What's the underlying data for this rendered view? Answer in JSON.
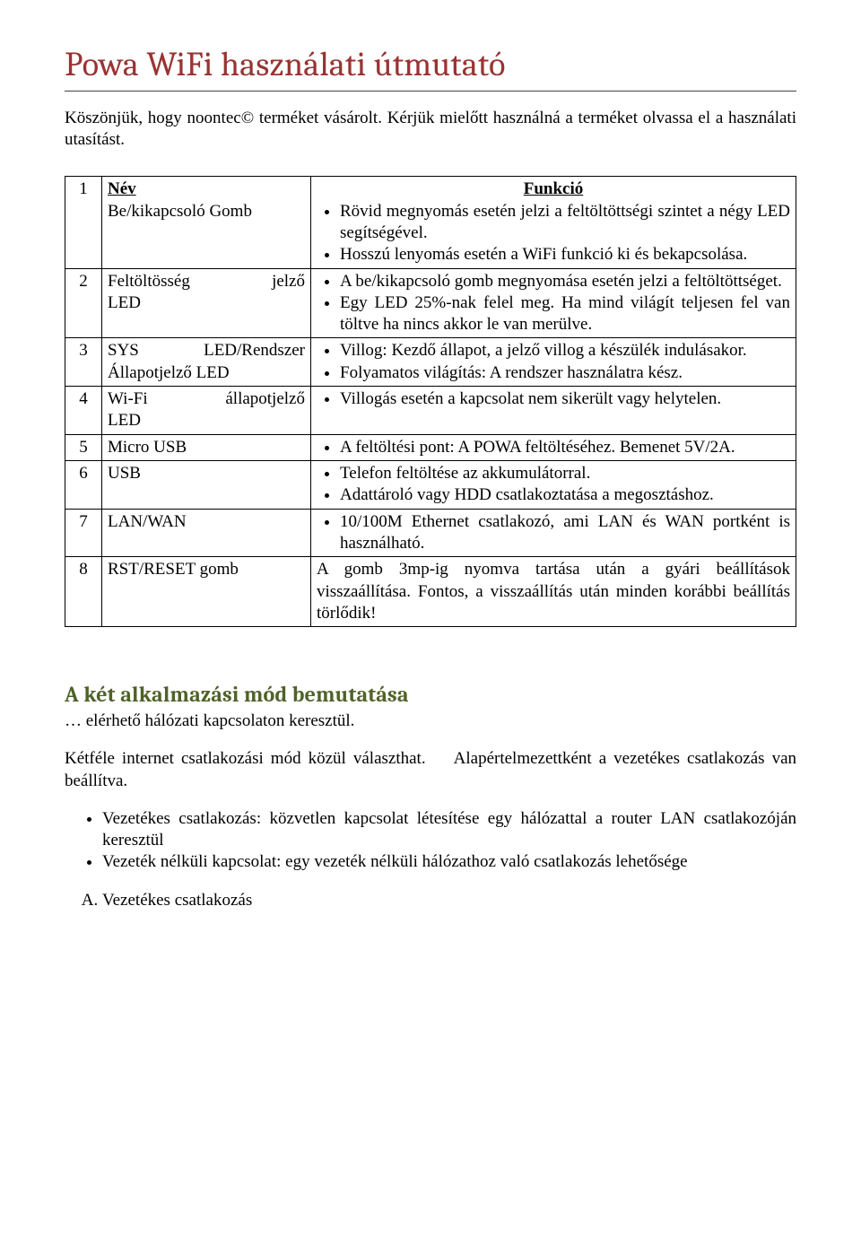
{
  "title_color": "#993333",
  "section_color": "#4f6228",
  "title": "Powa WiFi használati útmutató",
  "intro": "Köszönjük, hogy noontec© terméket vásárolt. Kérjük mielőtt használná a terméket olvassa el a használati utasítást.",
  "table": {
    "header_name": "Név",
    "header_func": "Funkció",
    "rows": [
      {
        "n": "1",
        "name": "Be/kikapcsoló Gomb",
        "bullets": [
          "Rövid megnyomás esetén jelzi a feltöltöttségi szintet a négy LED segítségével.",
          "Hosszú lenyomás esetén a WiFi funkció ki és bekapcsolása."
        ]
      },
      {
        "n": "2",
        "name": "Feltöltösség jelző LED",
        "bullets": [
          "A be/kikapcsoló gomb megnyomása esetén jelzi a feltöltöttséget.",
          "Egy LED 25%-nak felel meg. Ha mind világít teljesen fel van töltve ha nincs akkor le van merülve."
        ]
      },
      {
        "n": "3",
        "name": "SYS LED/Rendszer Állapotjelző LED",
        "bullets": [
          "Villog: Kezdő állapot, a jelző villog a készülék indulásakor.",
          "Folyamatos világítás: A rendszer használatra kész."
        ]
      },
      {
        "n": "4",
        "name": "Wi-Fi állapotjelző LED",
        "bullets": [
          "Villogás esetén a kapcsolat nem sikerült vagy helytelen."
        ]
      },
      {
        "n": "5",
        "name": "Micro USB",
        "bullets": [
          "A feltöltési pont: A POWA feltöltéséhez. Bemenet 5V/2A."
        ]
      },
      {
        "n": "6",
        "name": "USB",
        "bullets": [
          "Telefon feltöltése az akkumulátorral.",
          "Adattároló vagy HDD csatlakoztatása a megosztáshoz."
        ]
      },
      {
        "n": "7",
        "name": "LAN/WAN",
        "bullets": [
          "10/100M Ethernet csatlakozó, ami LAN és WAN portként is használható."
        ]
      },
      {
        "n": "8",
        "name": "RST/RESET gomb",
        "plain": "A gomb 3mp-ig nyomva tartása után a gyári beállítások visszaállítása. Fontos, a visszaállítás után minden korábbi beállítás törlődik!"
      }
    ]
  },
  "section2_title": "A két alkalmazási mód bemutatása",
  "section2_sub": "… elérhető hálózati kapcsolaton keresztül.",
  "section2_p1a": "Kétféle internet csatlakozási mód közül választhat.",
  "section2_p1b": "Alapértelmezettként a vezetékes csatlakozás van beállítva.",
  "section2_list": [
    "Vezetékes csatlakozás: közvetlen kapcsolat létesítése egy hálózattal a router LAN csatlakozóján keresztül",
    "Vezeték nélküli kapcsolat: egy vezeték nélküli hálózathoz való csatlakozás lehetősége"
  ],
  "section2_ol_first": "Vezetékes csatlakozás"
}
